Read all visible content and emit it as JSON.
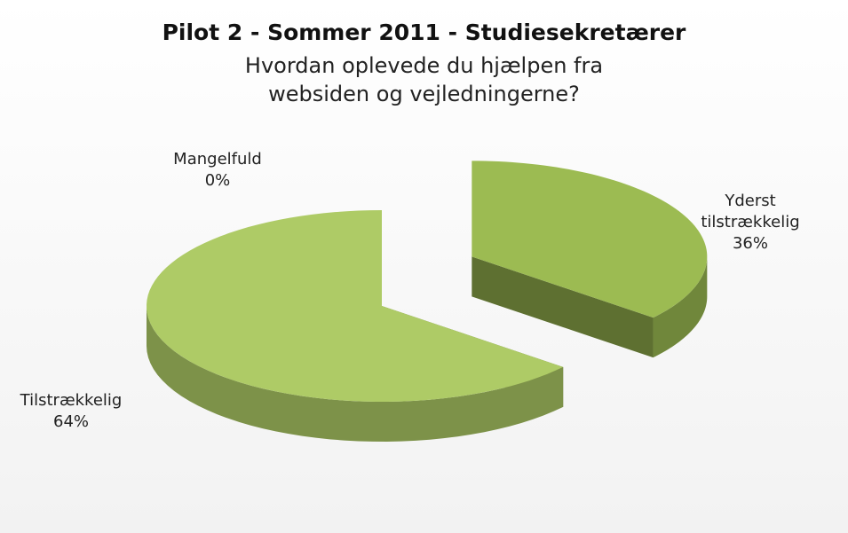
{
  "chart_data": {
    "type": "pie3d",
    "title": "Pilot 2 - Sommer 2011 - Studiesekretærer",
    "subtitle": "Hvordan oplevede du hjælpen fra websiden og vejledningerne?",
    "categories": [
      "Yderst tilstrækkelig",
      "Tilstrækkelig",
      "Mangelfuld"
    ],
    "values": [
      36,
      64,
      0
    ],
    "value_labels": [
      "36%",
      "64%",
      "0%"
    ],
    "colors": [
      "#9cbb52",
      "#aecb66",
      "#aecb66"
    ]
  }
}
